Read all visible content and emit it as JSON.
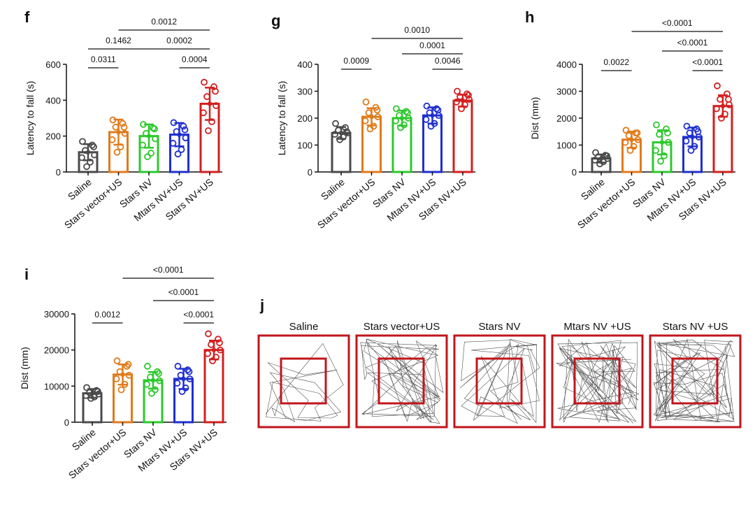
{
  "categories": [
    "Saline",
    "Stars vector+US",
    "Stars NV",
    "Mtars NV+US",
    "Stars NV+US"
  ],
  "colors": [
    "#4a4a4a",
    "#e07b1a",
    "#2cc82c",
    "#1f2fcf",
    "#d41f1f"
  ],
  "chart_data": [
    {
      "type": "bar",
      "panel": "f",
      "ylabel": "Latency to fall  (s)",
      "ylim": [
        0,
        600
      ],
      "yticks": [
        0,
        200,
        400,
        600
      ],
      "ytick_labels": [
        "0",
        "200",
        "400",
        "600"
      ],
      "means": [
        110,
        222,
        200,
        208,
        380
      ],
      "sd": [
        45,
        70,
        65,
        65,
        90
      ],
      "points": [
        [
          170,
          150,
          120,
          95,
          80,
          55,
          30,
          140
        ],
        [
          290,
          270,
          250,
          215,
          180,
          140,
          110,
          250
        ],
        [
          265,
          245,
          215,
          185,
          150,
          105,
          85,
          240
        ],
        [
          275,
          255,
          225,
          190,
          160,
          125,
          100,
          235
        ],
        [
          500,
          475,
          420,
          370,
          330,
          280,
          230,
          450
        ]
      ],
      "comparisons": [
        {
          "from": 0,
          "to": 1,
          "level": 0,
          "label": "0.0311"
        },
        {
          "from": 3,
          "to": 4,
          "level": 0,
          "label": "0.0004"
        },
        {
          "from": 0,
          "to": 2,
          "level": 1,
          "label": "0.1462"
        },
        {
          "from": 2,
          "to": 4,
          "level": 1,
          "label": "0.0002"
        },
        {
          "from": 1,
          "to": 4,
          "level": 2,
          "label": "0.0012"
        }
      ]
    },
    {
      "type": "bar",
      "panel": "g",
      "ylabel": "Latency to fall  (s)",
      "ylim": [
        0,
        400
      ],
      "yticks": [
        0,
        100,
        200,
        300,
        400
      ],
      "ytick_labels": [
        "0",
        "100",
        "200",
        "300",
        "400"
      ],
      "means": [
        145,
        205,
        200,
        210,
        265
      ],
      "sd": [
        22,
        32,
        28,
        30,
        22
      ],
      "points": [
        [
          180,
          165,
          155,
          145,
          140,
          130,
          120,
          150
        ],
        [
          260,
          240,
          220,
          205,
          190,
          170,
          160,
          230
        ],
        [
          235,
          225,
          210,
          200,
          190,
          175,
          165,
          220
        ],
        [
          245,
          235,
          220,
          210,
          195,
          180,
          170,
          230
        ],
        [
          300,
          290,
          280,
          270,
          260,
          250,
          235,
          285
        ]
      ],
      "comparisons": [
        {
          "from": 0,
          "to": 1,
          "level": 0,
          "label": "0.0009"
        },
        {
          "from": 3,
          "to": 4,
          "level": 0,
          "label": "0.0046"
        },
        {
          "from": 2,
          "to": 4,
          "level": 1,
          "label": "0.0001"
        },
        {
          "from": 1,
          "to": 4,
          "level": 2,
          "label": "0.0010"
        }
      ]
    },
    {
      "type": "bar",
      "panel": "h",
      "ylabel": "Dist (mm)",
      "ylim": [
        0,
        4000
      ],
      "yticks": [
        0,
        1000,
        2000,
        3000,
        4000
      ],
      "ytick_labels": [
        "0",
        "1000",
        "2000",
        "3000",
        "4000"
      ],
      "means": [
        500,
        1200,
        1100,
        1300,
        2450
      ],
      "sd": [
        150,
        300,
        450,
        350,
        400
      ],
      "points": [
        [
          720,
          620,
          560,
          500,
          440,
          380,
          300,
          600
        ],
        [
          1550,
          1450,
          1350,
          1200,
          1100,
          950,
          800,
          1450
        ],
        [
          1750,
          1600,
          1400,
          1100,
          800,
          600,
          400,
          1450
        ],
        [
          1700,
          1600,
          1450,
          1300,
          1150,
          950,
          800,
          1500
        ],
        [
          3200,
          2900,
          2700,
          2500,
          2350,
          2150,
          2000,
          2700
        ]
      ],
      "comparisons": [
        {
          "from": 0,
          "to": 1,
          "level": 0,
          "label": "0.0022"
        },
        {
          "from": 3,
          "to": 4,
          "level": 0,
          "label": "<0.0001"
        },
        {
          "from": 2,
          "to": 4,
          "level": 1,
          "label": "<0.0001"
        },
        {
          "from": 1,
          "to": 4,
          "level": 2,
          "label": "<0.0001"
        }
      ]
    },
    {
      "type": "bar",
      "panel": "i",
      "ylabel": "Dist (mm)",
      "ylim": [
        0,
        30000
      ],
      "yticks": [
        0,
        10000,
        20000,
        30000
      ],
      "ytick_labels": [
        "0",
        "10000",
        "20000",
        "30000"
      ],
      "means": [
        8000,
        13200,
        11600,
        12000,
        20000
      ],
      "sd": [
        1200,
        2800,
        2300,
        2800,
        2600
      ],
      "points": [
        [
          9600,
          8800,
          8200,
          7800,
          7400,
          7000,
          6600,
          8500
        ],
        [
          17000,
          15500,
          14000,
          13000,
          12000,
          10500,
          9000,
          16000
        ],
        [
          15500,
          14000,
          12500,
          11500,
          10500,
          9000,
          8000,
          13500
        ],
        [
          15500,
          14500,
          13000,
          12000,
          10800,
          9500,
          8500,
          14000
        ],
        [
          24500,
          23000,
          21500,
          20000,
          19000,
          18000,
          17000,
          22000
        ]
      ],
      "comparisons": [
        {
          "from": 0,
          "to": 1,
          "level": 0,
          "label": "0.0012"
        },
        {
          "from": 3,
          "to": 4,
          "level": 0,
          "label": "<0.0001"
        },
        {
          "from": 2,
          "to": 4,
          "level": 1,
          "label": "<0.0001"
        },
        {
          "from": 1,
          "to": 4,
          "level": 2,
          "label": "<0.0001"
        }
      ]
    }
  ],
  "panel_j": {
    "letter": "j",
    "titles": [
      "Saline",
      "Stars vector+US",
      "Stars NV",
      "Mtars NV +US",
      "Stars NV +US"
    ],
    "densities": [
      25,
      55,
      40,
      70,
      85
    ]
  }
}
